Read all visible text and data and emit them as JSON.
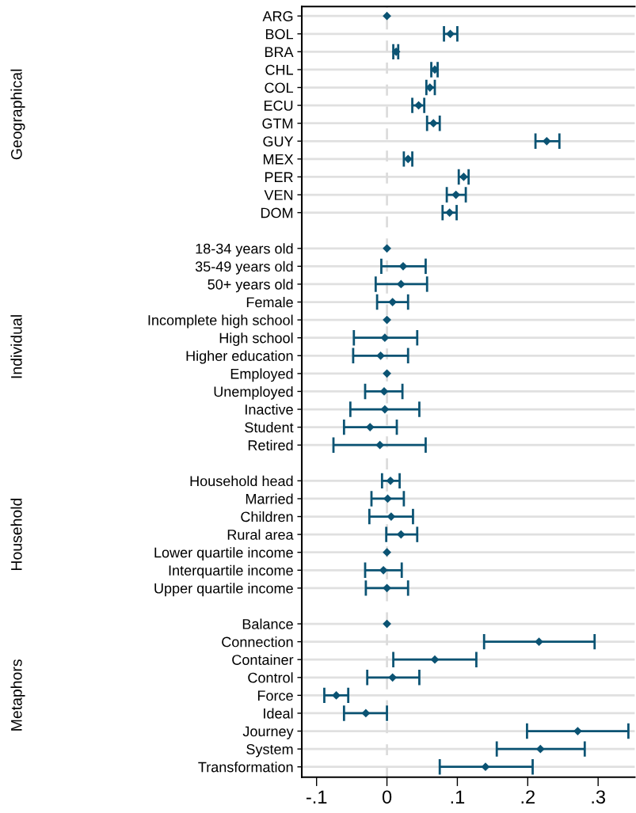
{
  "chart_data": {
    "type": "scatter",
    "orientation": "horizontal",
    "categories": [
      "ARG",
      "BOL",
      "BRA",
      "CHL",
      "COL",
      "ECU",
      "GTM",
      "GUY",
      "MEX",
      "PER",
      "VEN",
      "DOM",
      null,
      "18-34 years old",
      "35-49 years old",
      "50+ years old",
      "Female",
      "Incomplete high school",
      "High school",
      "Higher education",
      "Employed",
      "Unemployed",
      "Inactive",
      "Student",
      "Retired",
      null,
      "Household head",
      "Married",
      "Children",
      "Rural area",
      "Lower quartile income",
      "Interquartile income",
      "Upper quartile income",
      null,
      "Balance",
      "Connection",
      "Container",
      "Control",
      "Force",
      "Ideal",
      "Journey",
      "System",
      "Transformation"
    ],
    "values": [
      0,
      0.09,
      0.013,
      0.068,
      0.061,
      0.045,
      0.066,
      0.227,
      0.03,
      0.109,
      0.098,
      0.089,
      null,
      0,
      0.023,
      0.02,
      0.008,
      0,
      -0.003,
      -0.009,
      0,
      -0.004,
      -0.003,
      -0.024,
      -0.01,
      null,
      0.005,
      0.001,
      0.006,
      0.02,
      0,
      -0.005,
      0.0,
      null,
      0,
      0.216,
      0.068,
      0.008,
      -0.072,
      -0.03,
      0.271,
      0.218,
      0.14
    ],
    "errors": [
      null,
      [
        0.081,
        0.1
      ],
      [
        0.009,
        0.016
      ],
      [
        0.063,
        0.072
      ],
      [
        0.056,
        0.068
      ],
      [
        0.036,
        0.053
      ],
      [
        0.057,
        0.075
      ],
      [
        0.211,
        0.245
      ],
      [
        0.024,
        0.036
      ],
      [
        0.102,
        0.116
      ],
      [
        0.085,
        0.112
      ],
      [
        0.079,
        0.099
      ],
      null,
      null,
      [
        -0.008,
        0.055
      ],
      [
        -0.016,
        0.057
      ],
      [
        -0.014,
        0.03
      ],
      null,
      [
        -0.047,
        0.043
      ],
      [
        -0.048,
        0.03
      ],
      null,
      [
        -0.031,
        0.022
      ],
      [
        -0.052,
        0.046
      ],
      [
        -0.061,
        0.014
      ],
      [
        -0.076,
        0.055
      ],
      null,
      [
        -0.007,
        0.018
      ],
      [
        -0.022,
        0.024
      ],
      [
        -0.025,
        0.037
      ],
      [
        -0.001,
        0.043
      ],
      null,
      [
        -0.031,
        0.021
      ],
      [
        -0.03,
        0.03
      ],
      null,
      null,
      [
        0.138,
        0.295
      ],
      [
        0.009,
        0.127
      ],
      [
        -0.028,
        0.046
      ],
      [
        -0.089,
        -0.055
      ],
      [
        -0.061,
        0.0
      ],
      [
        0.199,
        0.343
      ],
      [
        0.156,
        0.281
      ],
      [
        0.075,
        0.207
      ]
    ],
    "color": "#0b5373",
    "marker": "diamond",
    "grid": "y",
    "xlim": [
      -0.121,
      0.352
    ],
    "xticks": [
      {
        "value": -0.1,
        "label": "-.1"
      },
      0,
      {
        "value": 0.1,
        "label": ".1"
      },
      {
        "value": 0.2,
        "label": ".2"
      },
      {
        "value": 0.3,
        "label": ".3"
      }
    ],
    "ref_lines": [
      {
        "axis": "x",
        "value": 0,
        "color": "#dcdcdc",
        "line_style": "dashed"
      }
    ],
    "annotations": [
      "Geographical",
      "Individual",
      "Household",
      "Metaphors"
    ]
  }
}
